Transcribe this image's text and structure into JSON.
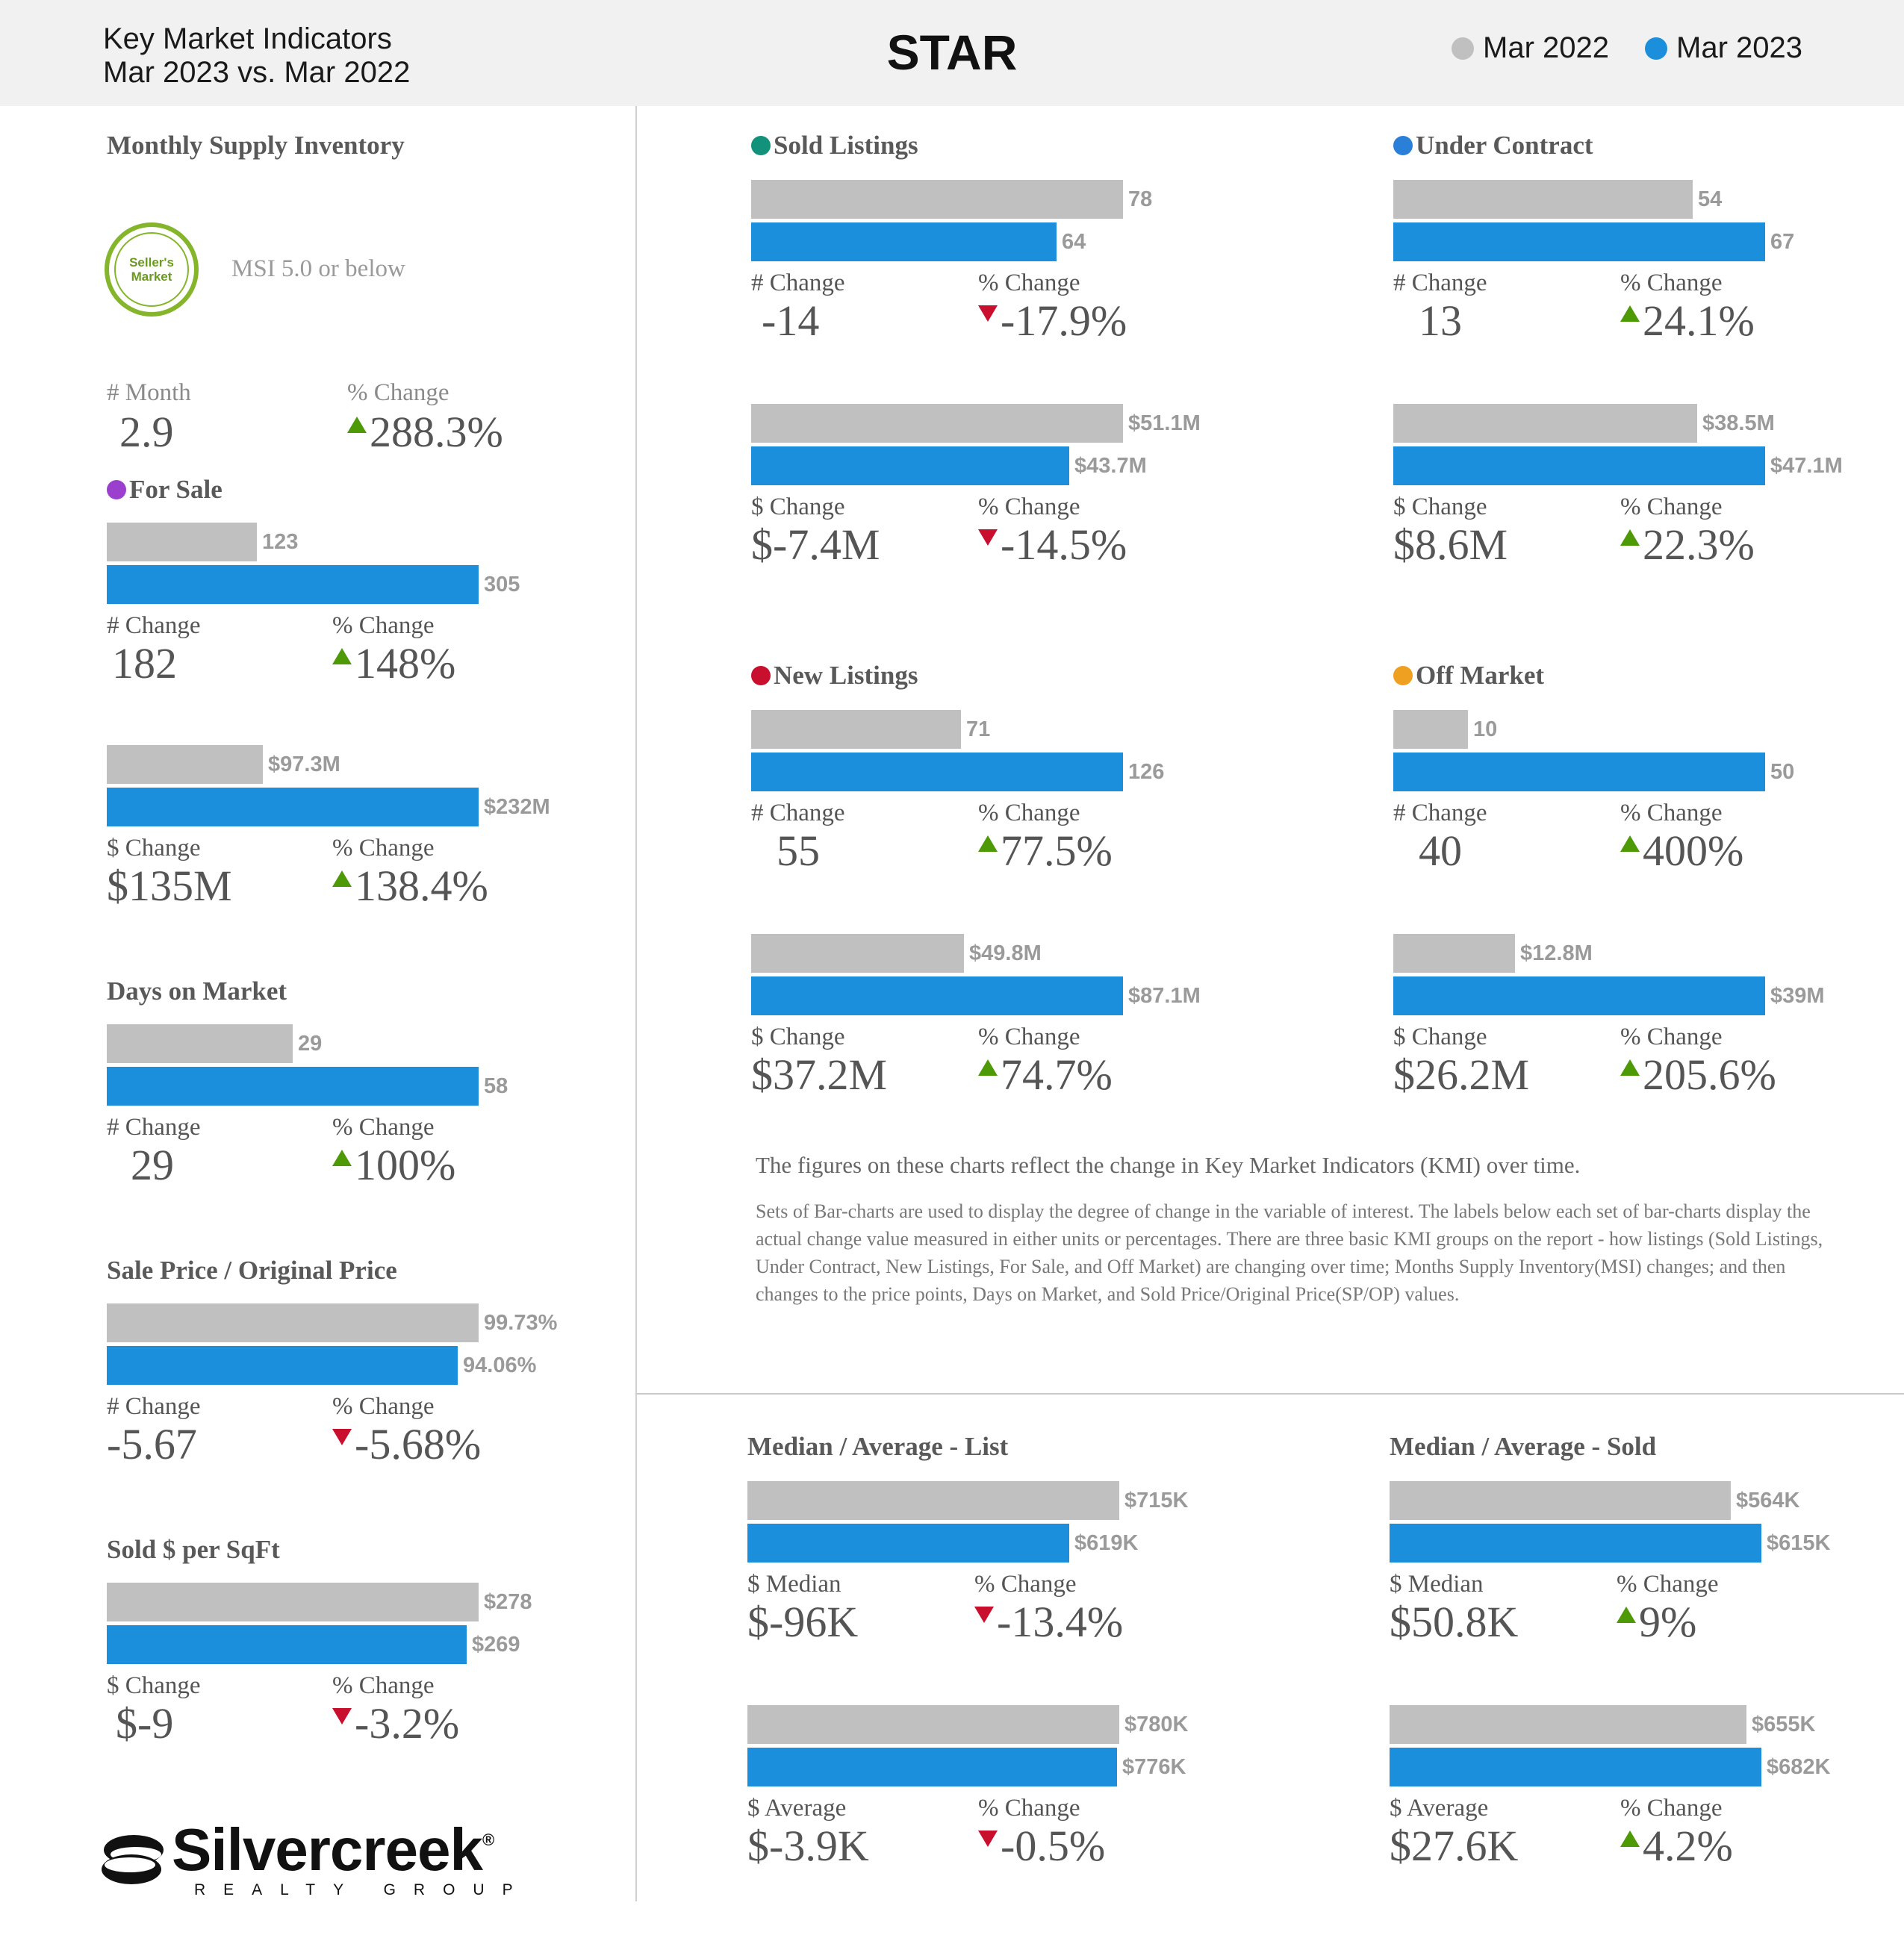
{
  "header": {
    "title_line1": "Key Market Indicators",
    "title_line2": "Mar 2023 vs. Mar 2022",
    "area": "STAR",
    "legend": [
      {
        "label": "Mar 2022",
        "color": "#c0c0c0"
      },
      {
        "label": "Mar 2023",
        "color": "#1b8fdc"
      }
    ]
  },
  "msi": {
    "title": "Monthly Supply Inventory",
    "badge_line1": "Seller's",
    "badge_line2": "Market",
    "badge_text": "MSI 5.0 or below",
    "month_label": "# Month",
    "month_value": "2.9",
    "pct_label": "% Change",
    "pct_value": "288.3%",
    "pct_dir": "up"
  },
  "chart_data": [
    {
      "type": "bar",
      "title": "For Sale",
      "dot_color": "#9b3fcf",
      "categories": [
        "Mar 2022",
        "Mar 2023"
      ],
      "values": [
        123,
        305
      ],
      "labels": [
        "123",
        "305"
      ],
      "change_label": "# Change",
      "change_value": "182",
      "pct_label": "% Change",
      "pct_value": "148%",
      "pct_dir": "up"
    },
    {
      "type": "bar",
      "title": "",
      "categories": [
        "Mar 2022",
        "Mar 2023"
      ],
      "values": [
        97.3,
        232
      ],
      "labels": [
        "$97.3M",
        "$232M"
      ],
      "change_label": "$ Change",
      "change_value": "$135M",
      "pct_label": "% Change",
      "pct_value": "138.4%",
      "pct_dir": "up"
    },
    {
      "type": "bar",
      "title": "Days on Market",
      "categories": [
        "Mar 2022",
        "Mar 2023"
      ],
      "values": [
        29,
        58
      ],
      "labels": [
        "29",
        "58"
      ],
      "change_label": "# Change",
      "change_value": "29",
      "pct_label": "% Change",
      "pct_value": "100%",
      "pct_dir": "up"
    },
    {
      "type": "bar",
      "title": "Sale Price / Original Price",
      "categories": [
        "Mar 2022",
        "Mar 2023"
      ],
      "values": [
        99.73,
        94.06
      ],
      "labels": [
        "99.73%",
        "94.06%"
      ],
      "change_label": "# Change",
      "change_value": "-5.67",
      "pct_label": "% Change",
      "pct_value": "-5.68%",
      "pct_dir": "down"
    },
    {
      "type": "bar",
      "title": "Sold $ per SqFt",
      "categories": [
        "Mar 2022",
        "Mar 2023"
      ],
      "values": [
        278,
        269
      ],
      "labels": [
        "$278",
        "$269"
      ],
      "change_label": "$ Change",
      "change_value": "$-9",
      "pct_label": "% Change",
      "pct_value": "-3.2%",
      "pct_dir": "down"
    },
    {
      "type": "bar",
      "title": "Sold Listings",
      "dot_color": "#12917b",
      "categories": [
        "Mar 2022",
        "Mar 2023"
      ],
      "values": [
        78,
        64
      ],
      "labels": [
        "78",
        "64"
      ],
      "change_label": "# Change",
      "change_value": "-14",
      "pct_label": "% Change",
      "pct_value": "-17.9%",
      "pct_dir": "down"
    },
    {
      "type": "bar",
      "title": "",
      "categories": [
        "Mar 2022",
        "Mar 2023"
      ],
      "values": [
        51.1,
        43.7
      ],
      "labels": [
        "$51.1M",
        "$43.7M"
      ],
      "change_label": "$ Change",
      "change_value": "$-7.4M",
      "pct_label": "% Change",
      "pct_value": "-14.5%",
      "pct_dir": "down"
    },
    {
      "type": "bar",
      "title": "Under Contract",
      "dot_color": "#2a7fd9",
      "categories": [
        "Mar 2022",
        "Mar 2023"
      ],
      "values": [
        54,
        67
      ],
      "labels": [
        "54",
        "67"
      ],
      "change_label": "# Change",
      "change_value": "13",
      "pct_label": "% Change",
      "pct_value": "24.1%",
      "pct_dir": "up"
    },
    {
      "type": "bar",
      "title": "",
      "categories": [
        "Mar 2022",
        "Mar 2023"
      ],
      "values": [
        38.5,
        47.1
      ],
      "labels": [
        "$38.5M",
        "$47.1M"
      ],
      "change_label": "$ Change",
      "change_value": "$8.6M",
      "pct_label": "% Change",
      "pct_value": "22.3%",
      "pct_dir": "up"
    },
    {
      "type": "bar",
      "title": "New Listings",
      "dot_color": "#c8102e",
      "categories": [
        "Mar 2022",
        "Mar 2023"
      ],
      "values": [
        71,
        126
      ],
      "labels": [
        "71",
        "126"
      ],
      "change_label": "# Change",
      "change_value": "55",
      "pct_label": "% Change",
      "pct_value": "77.5%",
      "pct_dir": "up"
    },
    {
      "type": "bar",
      "title": "",
      "categories": [
        "Mar 2022",
        "Mar 2023"
      ],
      "values": [
        49.8,
        87.1
      ],
      "labels": [
        "$49.8M",
        "$87.1M"
      ],
      "change_label": "$ Change",
      "change_value": "$37.2M",
      "pct_label": "% Change",
      "pct_value": "74.7%",
      "pct_dir": "up"
    },
    {
      "type": "bar",
      "title": "Off Market",
      "dot_color": "#f0a020",
      "categories": [
        "Mar 2022",
        "Mar 2023"
      ],
      "values": [
        10,
        50
      ],
      "labels": [
        "10",
        "50"
      ],
      "change_label": "# Change",
      "change_value": "40",
      "pct_label": "% Change",
      "pct_value": "400%",
      "pct_dir": "up"
    },
    {
      "type": "bar",
      "title": "",
      "categories": [
        "Mar 2022",
        "Mar 2023"
      ],
      "values": [
        12.8,
        39
      ],
      "labels": [
        "$12.8M",
        "$39M"
      ],
      "change_label": "$ Change",
      "change_value": "$26.2M",
      "pct_label": "% Change",
      "pct_value": "205.6%",
      "pct_dir": "up"
    },
    {
      "type": "bar",
      "title": "Median / Average - List",
      "categories": [
        "Mar 2022",
        "Mar 2023"
      ],
      "values": [
        715,
        619
      ],
      "labels": [
        "$715K",
        "$619K"
      ],
      "change_label": "$ Median",
      "change_value": "$-96K",
      "pct_label": "% Change",
      "pct_value": "-13.4%",
      "pct_dir": "down"
    },
    {
      "type": "bar",
      "title": "",
      "categories": [
        "Mar 2022",
        "Mar 2023"
      ],
      "values": [
        780,
        776
      ],
      "labels": [
        "$780K",
        "$776K"
      ],
      "change_label": "$ Average",
      "change_value": "$-3.9K",
      "pct_label": "% Change",
      "pct_value": "-0.5%",
      "pct_dir": "down"
    },
    {
      "type": "bar",
      "title": "Median / Average - Sold",
      "categories": [
        "Mar 2022",
        "Mar 2023"
      ],
      "values": [
        564,
        615
      ],
      "labels": [
        "$564K",
        "$615K"
      ],
      "change_label": "$ Median",
      "change_value": "$50.8K",
      "pct_label": "% Change",
      "pct_value": "9%",
      "pct_dir": "up"
    },
    {
      "type": "bar",
      "title": "",
      "categories": [
        "Mar 2022",
        "Mar 2023"
      ],
      "values": [
        655,
        682
      ],
      "labels": [
        "$655K",
        "$682K"
      ],
      "change_label": "$ Average",
      "change_value": "$27.6K",
      "pct_label": "% Change",
      "pct_value": "4.2%",
      "pct_dir": "up"
    }
  ],
  "notes": {
    "line1": "The figures on these charts reflect the change in Key Market Indicators (KMI) over time.",
    "line2": "Sets of Bar-charts are used to display the degree of change in the variable of interest. The labels below each set of bar-charts display the actual change value measured in either units or percentages. There are three basic KMI groups on the report - how listings (Sold Listings, Under Contract, New Listings, For Sale, and Off Market) are changing over time; Months Supply Inventory(MSI) changes; and then changes to the price points, Days on Market, and Sold Price/Original Price(SP/OP) values."
  },
  "logo": {
    "word": "Silvercreek",
    "mark": "®",
    "sub": "REALTY GROUP"
  }
}
